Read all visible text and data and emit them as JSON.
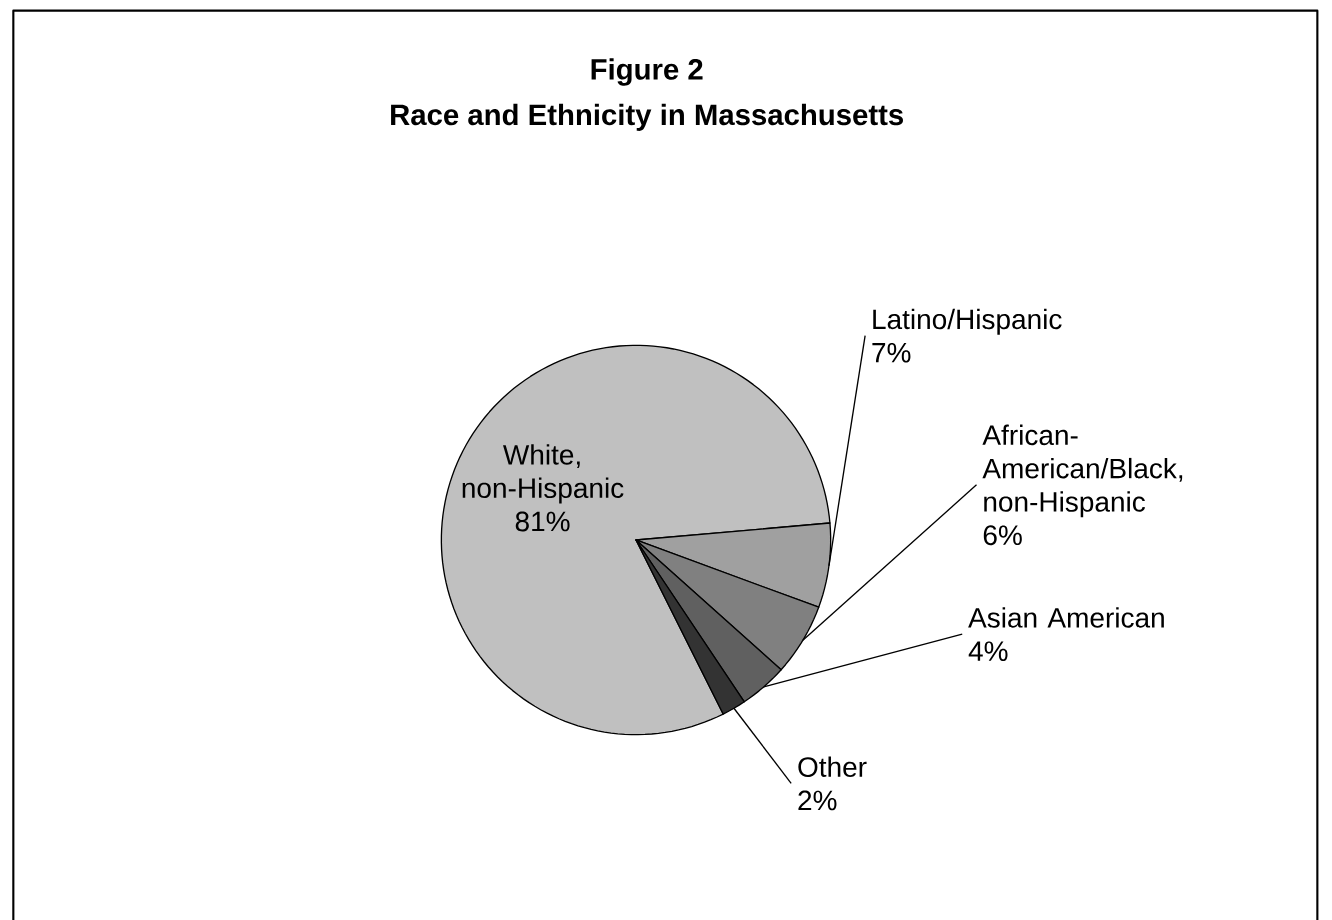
{
  "chart_data": {
    "type": "pie",
    "title": "Figure 2",
    "subtitle": "Race and Ethnicity in Massachusetts",
    "categories": [
      "White, non-Hispanic",
      "Latino/Hispanic",
      "African-American/Black, non-Hispanic",
      "Asian American",
      "Other"
    ],
    "values": [
      81,
      7,
      6,
      4,
      2
    ],
    "value_labels": [
      "81%",
      "7%",
      "6%",
      "4%",
      "2%"
    ],
    "colors": [
      "#c0c0c0",
      "#a0a0a0",
      "#808080",
      "#606060",
      "#333333"
    ]
  }
}
